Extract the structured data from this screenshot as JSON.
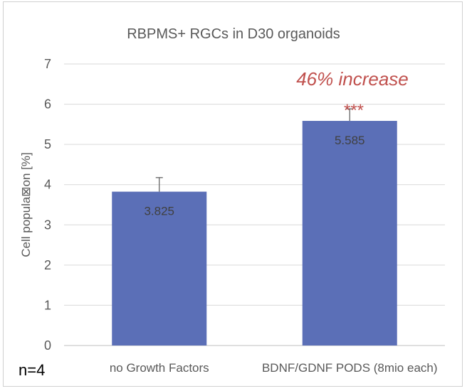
{
  "chart_data": {
    "type": "bar",
    "title": "RBPMS+ RGCs in D30 organoids",
    "ylabel": "Cell popula⊠on [%]",
    "xlabel": "",
    "categories": [
      "no Growth Factors",
      "BDNF/GDNF PODS (8mio each)"
    ],
    "values": [
      3.825,
      5.585
    ],
    "data_labels": [
      "3.825",
      "5.585"
    ],
    "error_bars": [
      0.35,
      0.3
    ],
    "ylim": [
      0,
      7
    ],
    "yticks": [
      "0",
      "1",
      "2",
      "3",
      "4",
      "5",
      "6",
      "7"
    ],
    "grid": true,
    "bar_color": "#5b6fb7",
    "annotations": {
      "increase": "46% increase",
      "significance": "***",
      "sample_size": "n=4"
    },
    "annotation_color": "#c0504d"
  }
}
